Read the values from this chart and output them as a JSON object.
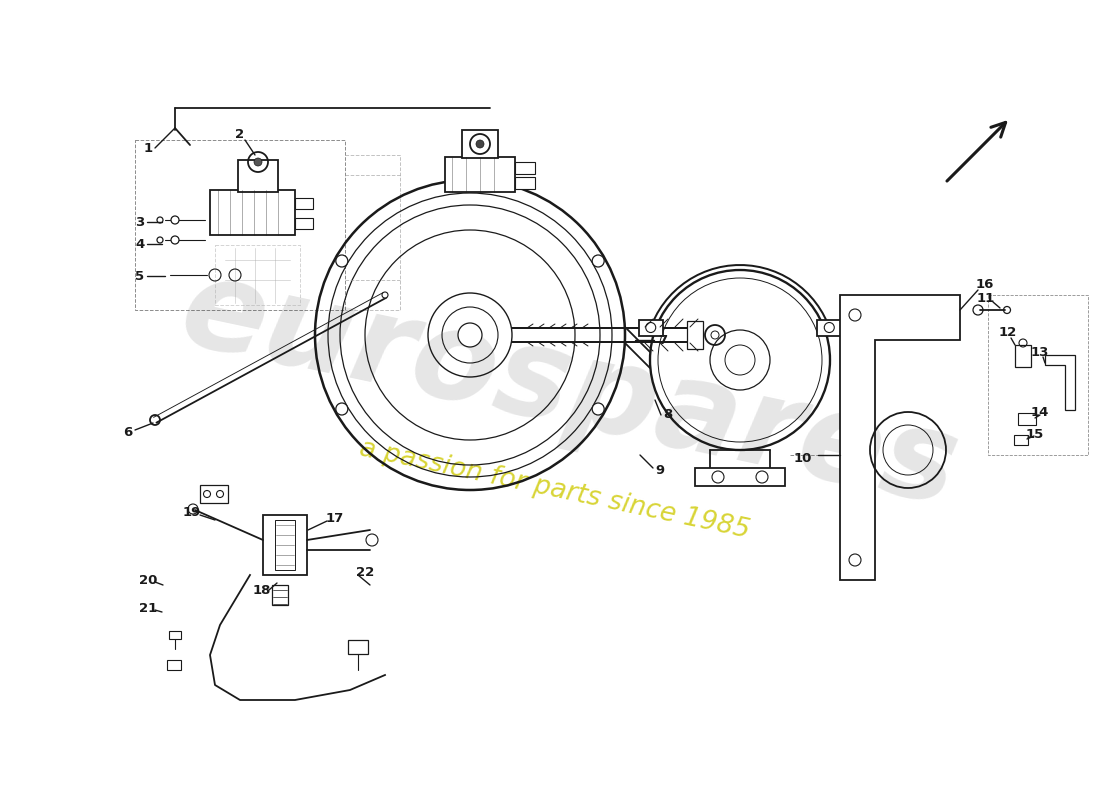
{
  "background_color": "#ffffff",
  "line_color": "#1a1a1a",
  "watermark_color1": "#c8c8c8",
  "watermark_color2": "#d4d020",
  "wm1_text": "eurospares",
  "wm2_text": "a passion for parts since 1985",
  "figsize": [
    11.0,
    8.0
  ],
  "dpi": 100
}
